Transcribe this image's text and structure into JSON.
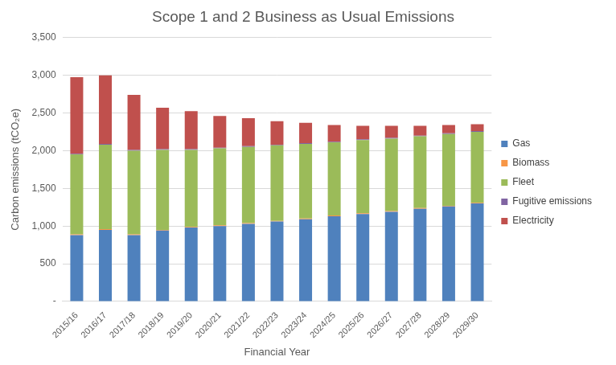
{
  "chart_data": {
    "type": "bar",
    "title": "Scope 1 and 2 Business as Usual Emissions",
    "x_label": "Financial Year",
    "y_label": "Carbon emissions (tCO₂e)",
    "categories": [
      "2015/16",
      "2016/17",
      "2017/18",
      "2018/19",
      "2019/20",
      "2020/21",
      "2021/22",
      "2022/23",
      "2023/24",
      "2024/25",
      "2025/26",
      "2026/27",
      "2027/28",
      "2028/29",
      "2029/30"
    ],
    "series": [
      {
        "name": "Gas",
        "color": "#4f81bd",
        "values": [
          880,
          950,
          880,
          940,
          980,
          1000,
          1030,
          1060,
          1090,
          1130,
          1160,
          1190,
          1230,
          1260,
          1300
        ]
      },
      {
        "name": "Biomass",
        "color": "#f79646",
        "values": [
          10,
          10,
          10,
          10,
          10,
          10,
          10,
          10,
          10,
          10,
          10,
          10,
          10,
          10,
          10
        ]
      },
      {
        "name": "Fleet",
        "color": "#9bbb59",
        "values": [
          1060,
          1120,
          1110,
          1060,
          1020,
          1020,
          1010,
          1000,
          990,
          970,
          970,
          960,
          950,
          950,
          940
        ]
      },
      {
        "name": "Fugitive emissions",
        "color": "#8064a2",
        "values": [
          10,
          10,
          10,
          10,
          10,
          10,
          10,
          10,
          10,
          10,
          10,
          10,
          10,
          10,
          10
        ]
      },
      {
        "name": "Electricity",
        "color": "#c0504d",
        "values": [
          1015,
          910,
          730,
          550,
          505,
          420,
          370,
          310,
          270,
          220,
          180,
          160,
          130,
          110,
          90
        ]
      }
    ],
    "ylim": [
      0,
      3500
    ],
    "yticks": [
      {
        "value": 0,
        "label": "-"
      },
      500,
      {
        "value": 1000,
        "label": "1,000"
      },
      {
        "value": 1500,
        "label": "1,500"
      },
      {
        "value": 2000,
        "label": "2,000"
      },
      {
        "value": 2500,
        "label": "2,500"
      },
      {
        "value": 3000,
        "label": "3,000"
      },
      {
        "value": 3500,
        "label": "3,500"
      }
    ],
    "stacked": true,
    "grid": true,
    "legend": "right"
  }
}
